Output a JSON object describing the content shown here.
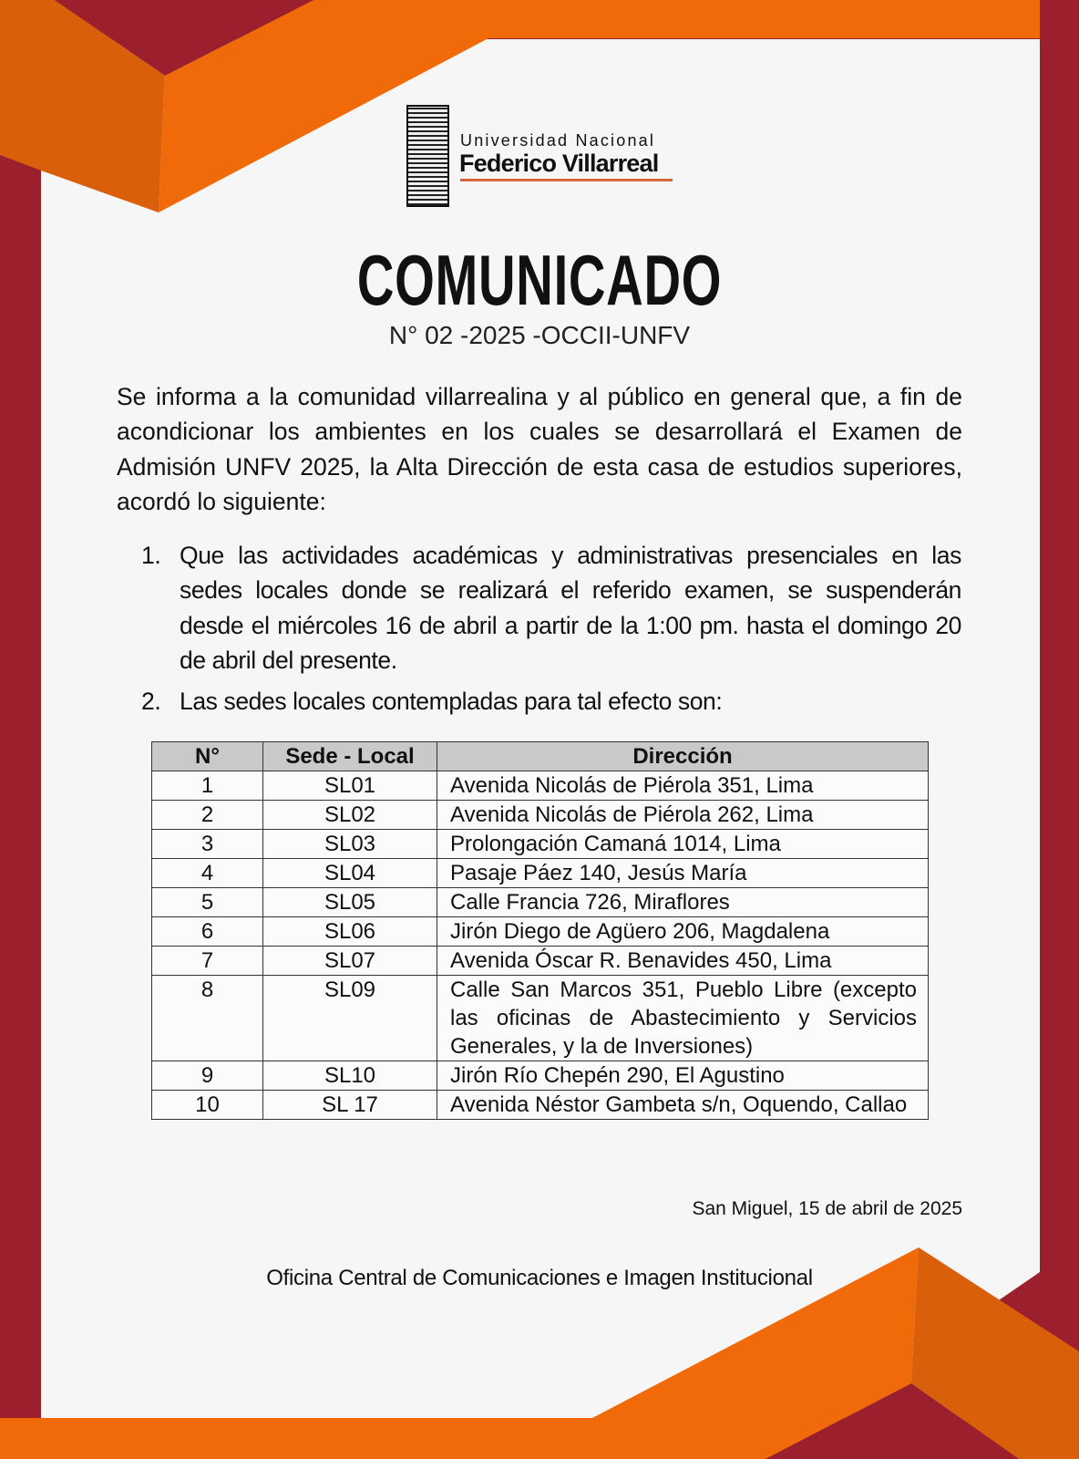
{
  "colors": {
    "dark_red": "#9b1f2c",
    "orange": "#f06a0a",
    "dark_orange": "#d95f0a",
    "page": "#f6f6f6"
  },
  "logo": {
    "line1": "Universidad Nacional",
    "line2": "Federico Villarreal"
  },
  "title": "COMUNICADO",
  "subtitle": "N° 02 -2025 -OCCII-UNFV",
  "intro": "Se informa a la comunidad villarrealina y al público en general que, a fin de acondicionar los ambientes en los cuales se desarrollará el Examen de Admisión UNFV 2025, la Alta Dirección de esta casa de estudios superiores, acordó lo siguiente:",
  "items": [
    {
      "num": "1.",
      "text": "Que las actividades académicas y administrativas presenciales en las sedes locales donde se realizará el referido examen, se suspenderán desde el miércoles 16 de abril a partir de la 1:00 pm. hasta el domingo 20 de abril del presente."
    },
    {
      "num": "2.",
      "text": "Las sedes locales contempladas para tal efecto son:"
    }
  ],
  "table": {
    "headers": [
      "N°",
      "Sede - Local",
      "Dirección"
    ],
    "rows": [
      [
        "1",
        "SL01",
        "Avenida Nicolás de Piérola 351, Lima"
      ],
      [
        "2",
        "SL02",
        "Avenida Nicolás de Piérola 262, Lima"
      ],
      [
        "3",
        "SL03",
        "Prolongación Camaná 1014, Lima"
      ],
      [
        "4",
        "SL04",
        "Pasaje Páez 140, Jesús María"
      ],
      [
        "5",
        "SL05",
        "Calle Francia 726, Miraflores"
      ],
      [
        "6",
        "SL06",
        "Jirón Diego de Agüero 206, Magdalena"
      ],
      [
        "7",
        "SL07",
        "Avenida Óscar R. Benavides 450, Lima"
      ],
      [
        "8",
        "SL09",
        "Calle San Marcos 351, Pueblo Libre (excepto las oficinas de Abastecimiento y Servicios Generales, y la de Inversiones)"
      ],
      [
        "9",
        "SL10",
        "Jirón Río Chepén 290, El Agustino"
      ],
      [
        "10",
        "SL 17",
        "Avenida Néstor Gambeta s/n, Oquendo, Callao"
      ]
    ]
  },
  "date": "San Miguel, 15 de abril  de 2025",
  "office": "Oficina Central de Comunicaciones e Imagen Institucional"
}
